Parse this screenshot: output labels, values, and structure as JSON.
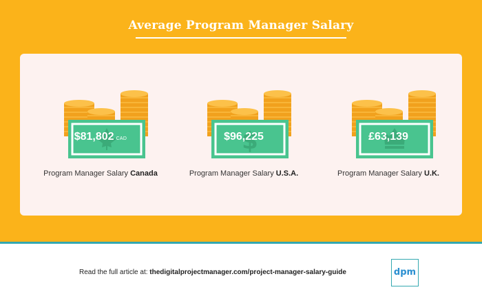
{
  "title": "Average Program Manager Salary",
  "colors": {
    "background": "#fbb31a",
    "panel": "#fdf2f0",
    "bill": "#49c48f",
    "bill_border": "#ffffff",
    "coin": "#f5a623",
    "accent_line": "#33a8b0",
    "logo": "#2a8fd0"
  },
  "items": [
    {
      "amount": "$81,802",
      "currency_suffix": "CAD",
      "caption_prefix": "Program Manager Salary ",
      "caption_bold": "Canada",
      "bill_icon": "maple-leaf-icon"
    },
    {
      "amount": "$96,225",
      "currency_suffix": "",
      "caption_prefix": "Program Manager Salary ",
      "caption_bold": "U.S.A.",
      "bill_icon": "dollar-sign-icon"
    },
    {
      "amount": "£63,139",
      "currency_suffix": "",
      "caption_prefix": "Program Manager Salary ",
      "caption_bold": "U.K.",
      "bill_icon": "crown-icon"
    }
  ],
  "footer": {
    "prefix": "Read the full article at: ",
    "url": "thedigitalprojectmanager.com/project-manager-salary-guide"
  },
  "logo_text": "dpm"
}
